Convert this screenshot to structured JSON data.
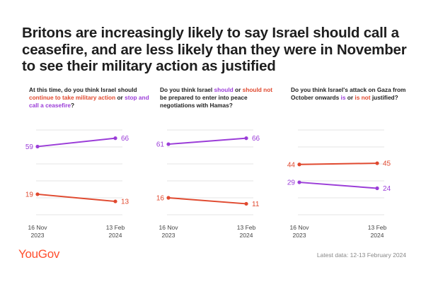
{
  "title": "Britons are increasingly likely to say Israel should call a ceasefire, and are less likely than they were in November to see their military action as justified",
  "logo": "YouGov",
  "footer": "Latest data: 12-13 February 2024",
  "colors": {
    "purple": "#9b3dd8",
    "red": "#e0492f",
    "grid": "#e6e6e6",
    "label": "#555555"
  },
  "chart_data": [
    {
      "type": "line",
      "question_parts": [
        {
          "text": "At this time, do you think Israel should ",
          "style": "plain"
        },
        {
          "text": "continue to take military action",
          "style": "red"
        },
        {
          "text": " or ",
          "style": "plain"
        },
        {
          "text": "stop and call a ceasefire",
          "style": "purple"
        },
        {
          "text": "?",
          "style": "plain"
        }
      ],
      "x": [
        {
          "line1": "16 Nov",
          "line2": "2023"
        },
        {
          "line1": "13 Feb",
          "line2": "2024"
        }
      ],
      "series": [
        {
          "name": "Stop and call a ceasefire",
          "color": "purple",
          "values": [
            59,
            66
          ]
        },
        {
          "name": "Continue to take military action",
          "color": "red",
          "values": [
            19,
            13
          ]
        }
      ],
      "ylim": [
        0,
        80
      ]
    },
    {
      "type": "line",
      "question_parts": [
        {
          "text": "Do you think Israel ",
          "style": "plain"
        },
        {
          "text": "should",
          "style": "purple"
        },
        {
          "text": " or ",
          "style": "plain"
        },
        {
          "text": "should not",
          "style": "red"
        },
        {
          "text": " be prepared to enter into peace negotiations with Hamas?",
          "style": "plain"
        }
      ],
      "x": [
        {
          "line1": "16 Nov",
          "line2": "2023"
        },
        {
          "line1": "13 Feb",
          "line2": "2024"
        }
      ],
      "series": [
        {
          "name": "Should",
          "color": "purple",
          "values": [
            61,
            66
          ]
        },
        {
          "name": "Should not",
          "color": "red",
          "values": [
            16,
            11
          ]
        }
      ],
      "ylim": [
        0,
        80
      ]
    },
    {
      "type": "line",
      "question_parts": [
        {
          "text": "Do you think Israel's attack on Gaza from October onwards ",
          "style": "plain"
        },
        {
          "text": "is",
          "style": "purple"
        },
        {
          "text": " or ",
          "style": "plain"
        },
        {
          "text": "is not",
          "style": "red"
        },
        {
          "text": " justified?",
          "style": "plain"
        }
      ],
      "x": [
        {
          "line1": "16 Nov",
          "line2": "2023"
        },
        {
          "line1": "13 Feb",
          "line2": "2024"
        }
      ],
      "series": [
        {
          "name": "Is not justified",
          "color": "red",
          "values": [
            44,
            45
          ]
        },
        {
          "name": "Is justified",
          "color": "purple",
          "values": [
            29,
            24
          ]
        }
      ],
      "ylim": [
        0,
        80
      ]
    }
  ]
}
